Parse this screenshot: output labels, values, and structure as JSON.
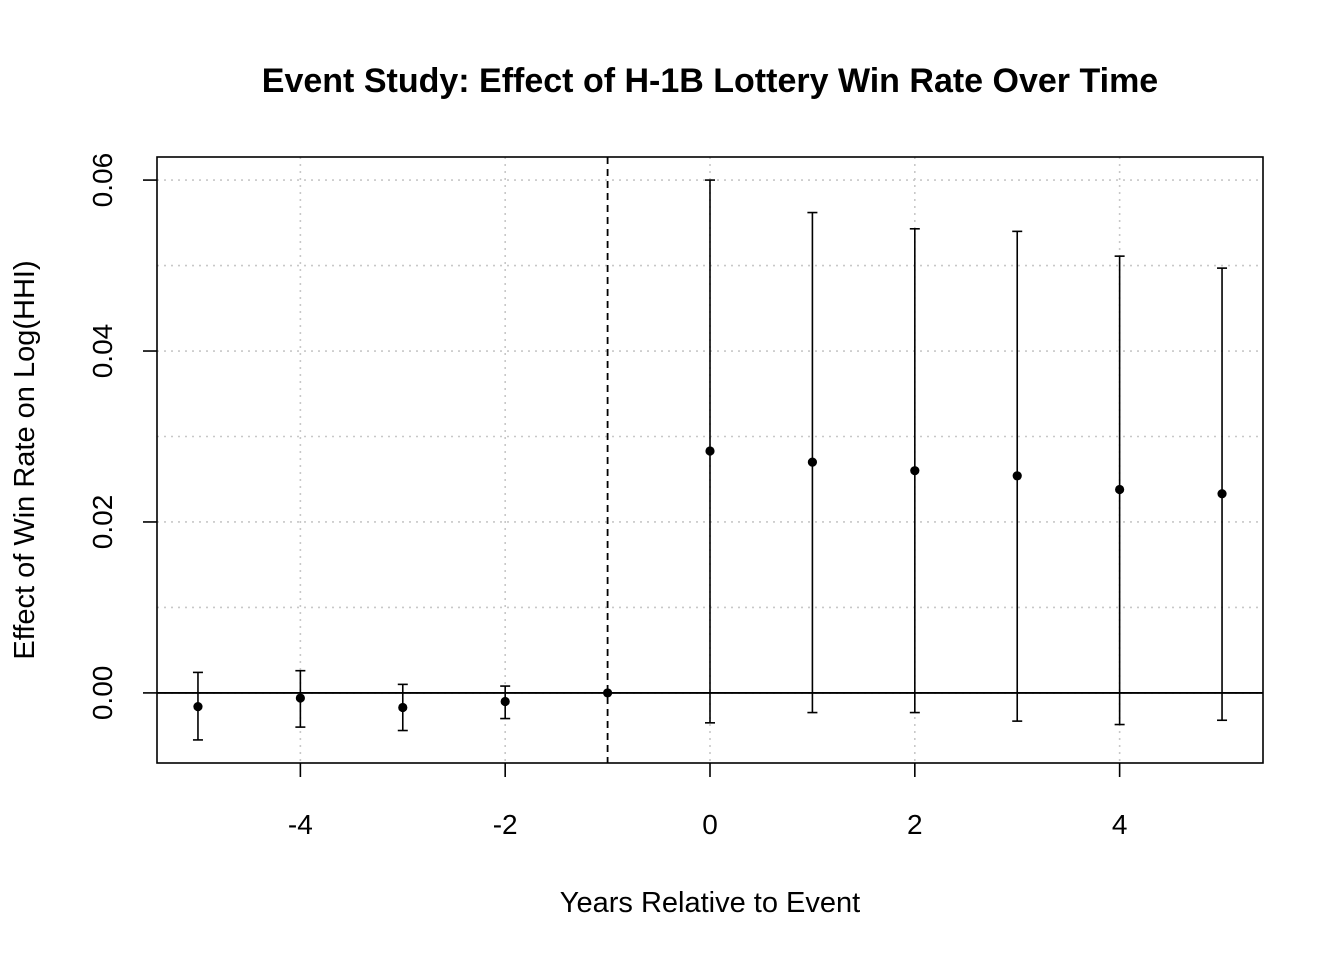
{
  "chart_data": {
    "type": "scatter",
    "title": "Event Study: Effect of H-1B Lottery Win Rate Over Time",
    "xlabel": "Years Relative to Event",
    "ylabel": "Effect of Win Rate on Log(HHI)",
    "xlim": [
      -5.4,
      5.4
    ],
    "ylim": [
      -0.0082,
      0.0627
    ],
    "x_ticks": [
      -4,
      -2,
      0,
      2,
      4
    ],
    "x_tick_labels": [
      "-4",
      "-2",
      "0",
      "2",
      "4"
    ],
    "y_ticks": [
      0.0,
      0.02,
      0.04,
      0.06
    ],
    "y_tick_labels": [
      "0.00",
      "0.02",
      "0.04",
      "0.06"
    ],
    "grid_x": [
      -4,
      -2,
      0,
      2,
      4
    ],
    "grid_y": [
      0.0,
      0.01,
      0.02,
      0.03,
      0.04,
      0.05,
      0.06
    ],
    "grid": true,
    "reference_vline": -1,
    "reference_hline": 0,
    "series": [
      {
        "x": [
          -5,
          -4,
          -3,
          -2,
          -1,
          0,
          1,
          2,
          3,
          4,
          5
        ],
        "estimate": [
          -0.0016,
          -0.0006,
          -0.0017,
          -0.001,
          0.0,
          0.0283,
          0.027,
          0.026,
          0.0254,
          0.0238,
          0.0233
        ],
        "ci_lower": [
          -0.0055,
          -0.004,
          -0.0044,
          -0.003,
          0.0,
          -0.0035,
          -0.0023,
          -0.0023,
          -0.0033,
          -0.0037,
          -0.0032
        ],
        "ci_upper": [
          0.0024,
          0.0026,
          0.001,
          0.0008,
          0.0,
          0.06,
          0.0562,
          0.0543,
          0.054,
          0.0511,
          0.0497
        ]
      }
    ]
  },
  "colors": {
    "points": "#000000",
    "grid": "#c8c8c8",
    "frame": "#000000"
  }
}
